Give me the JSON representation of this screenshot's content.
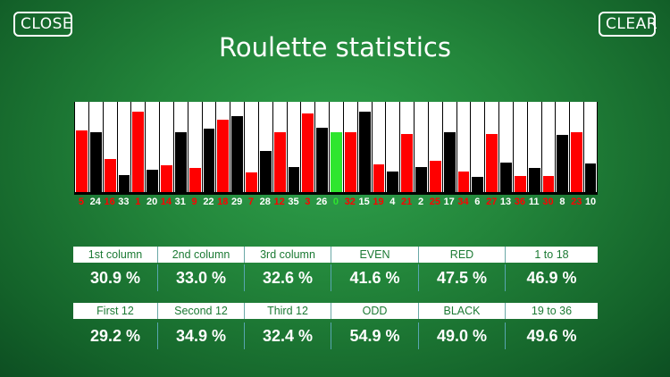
{
  "header": {
    "close_label": "CLOSE",
    "clear_label": "CLEAR",
    "title": "Roulette statistics"
  },
  "colors": {
    "red": "#ff0000",
    "black": "#000000",
    "green": "#2ee62e",
    "label_green": "#1c7a34"
  },
  "chart_data": {
    "type": "bar",
    "categories": [
      "5",
      "24",
      "16",
      "33",
      "1",
      "20",
      "14",
      "31",
      "9",
      "22",
      "18",
      "29",
      "7",
      "28",
      "12",
      "35",
      "3",
      "26",
      "0",
      "32",
      "15",
      "19",
      "4",
      "21",
      "2",
      "25",
      "17",
      "34",
      "6",
      "27",
      "13",
      "36",
      "11",
      "30",
      "8",
      "23",
      "10"
    ],
    "bar_colors": [
      "red",
      "black",
      "red",
      "black",
      "red",
      "black",
      "red",
      "black",
      "red",
      "black",
      "red",
      "black",
      "red",
      "black",
      "red",
      "black",
      "red",
      "black",
      "green",
      "red",
      "black",
      "red",
      "black",
      "red",
      "black",
      "red",
      "black",
      "red",
      "black",
      "red",
      "black",
      "red",
      "black",
      "red",
      "black",
      "red",
      "black"
    ],
    "values": [
      0.7,
      0.68,
      0.39,
      0.21,
      0.91,
      0.27,
      0.32,
      0.68,
      0.29,
      0.72,
      0.82,
      0.86,
      0.24,
      0.48,
      0.68,
      0.3,
      0.89,
      0.73,
      0.68,
      0.68,
      0.91,
      0.33,
      0.25,
      0.66,
      0.3,
      0.37,
      0.68,
      0.25,
      0.19,
      0.66,
      0.35,
      0.2,
      0.29,
      0.2,
      0.65,
      0.68,
      0.34
    ],
    "ylim": [
      0,
      1
    ]
  },
  "stats": {
    "row1": [
      {
        "label": "1st column",
        "value": "30.9 %"
      },
      {
        "label": "2nd column",
        "value": "33.0 %"
      },
      {
        "label": "3rd column",
        "value": "32.6 %"
      },
      {
        "label": "EVEN",
        "value": "41.6 %"
      },
      {
        "label": "RED",
        "value": "47.5 %"
      },
      {
        "label": "1 to 18",
        "value": "46.9 %"
      }
    ],
    "row2": [
      {
        "label": "First 12",
        "value": "29.2 %"
      },
      {
        "label": "Second 12",
        "value": "34.9 %"
      },
      {
        "label": "Third 12",
        "value": "32.4 %"
      },
      {
        "label": "ODD",
        "value": "54.9 %"
      },
      {
        "label": "BLACK",
        "value": "49.0 %"
      },
      {
        "label": "19 to 36",
        "value": "49.6 %"
      }
    ]
  }
}
